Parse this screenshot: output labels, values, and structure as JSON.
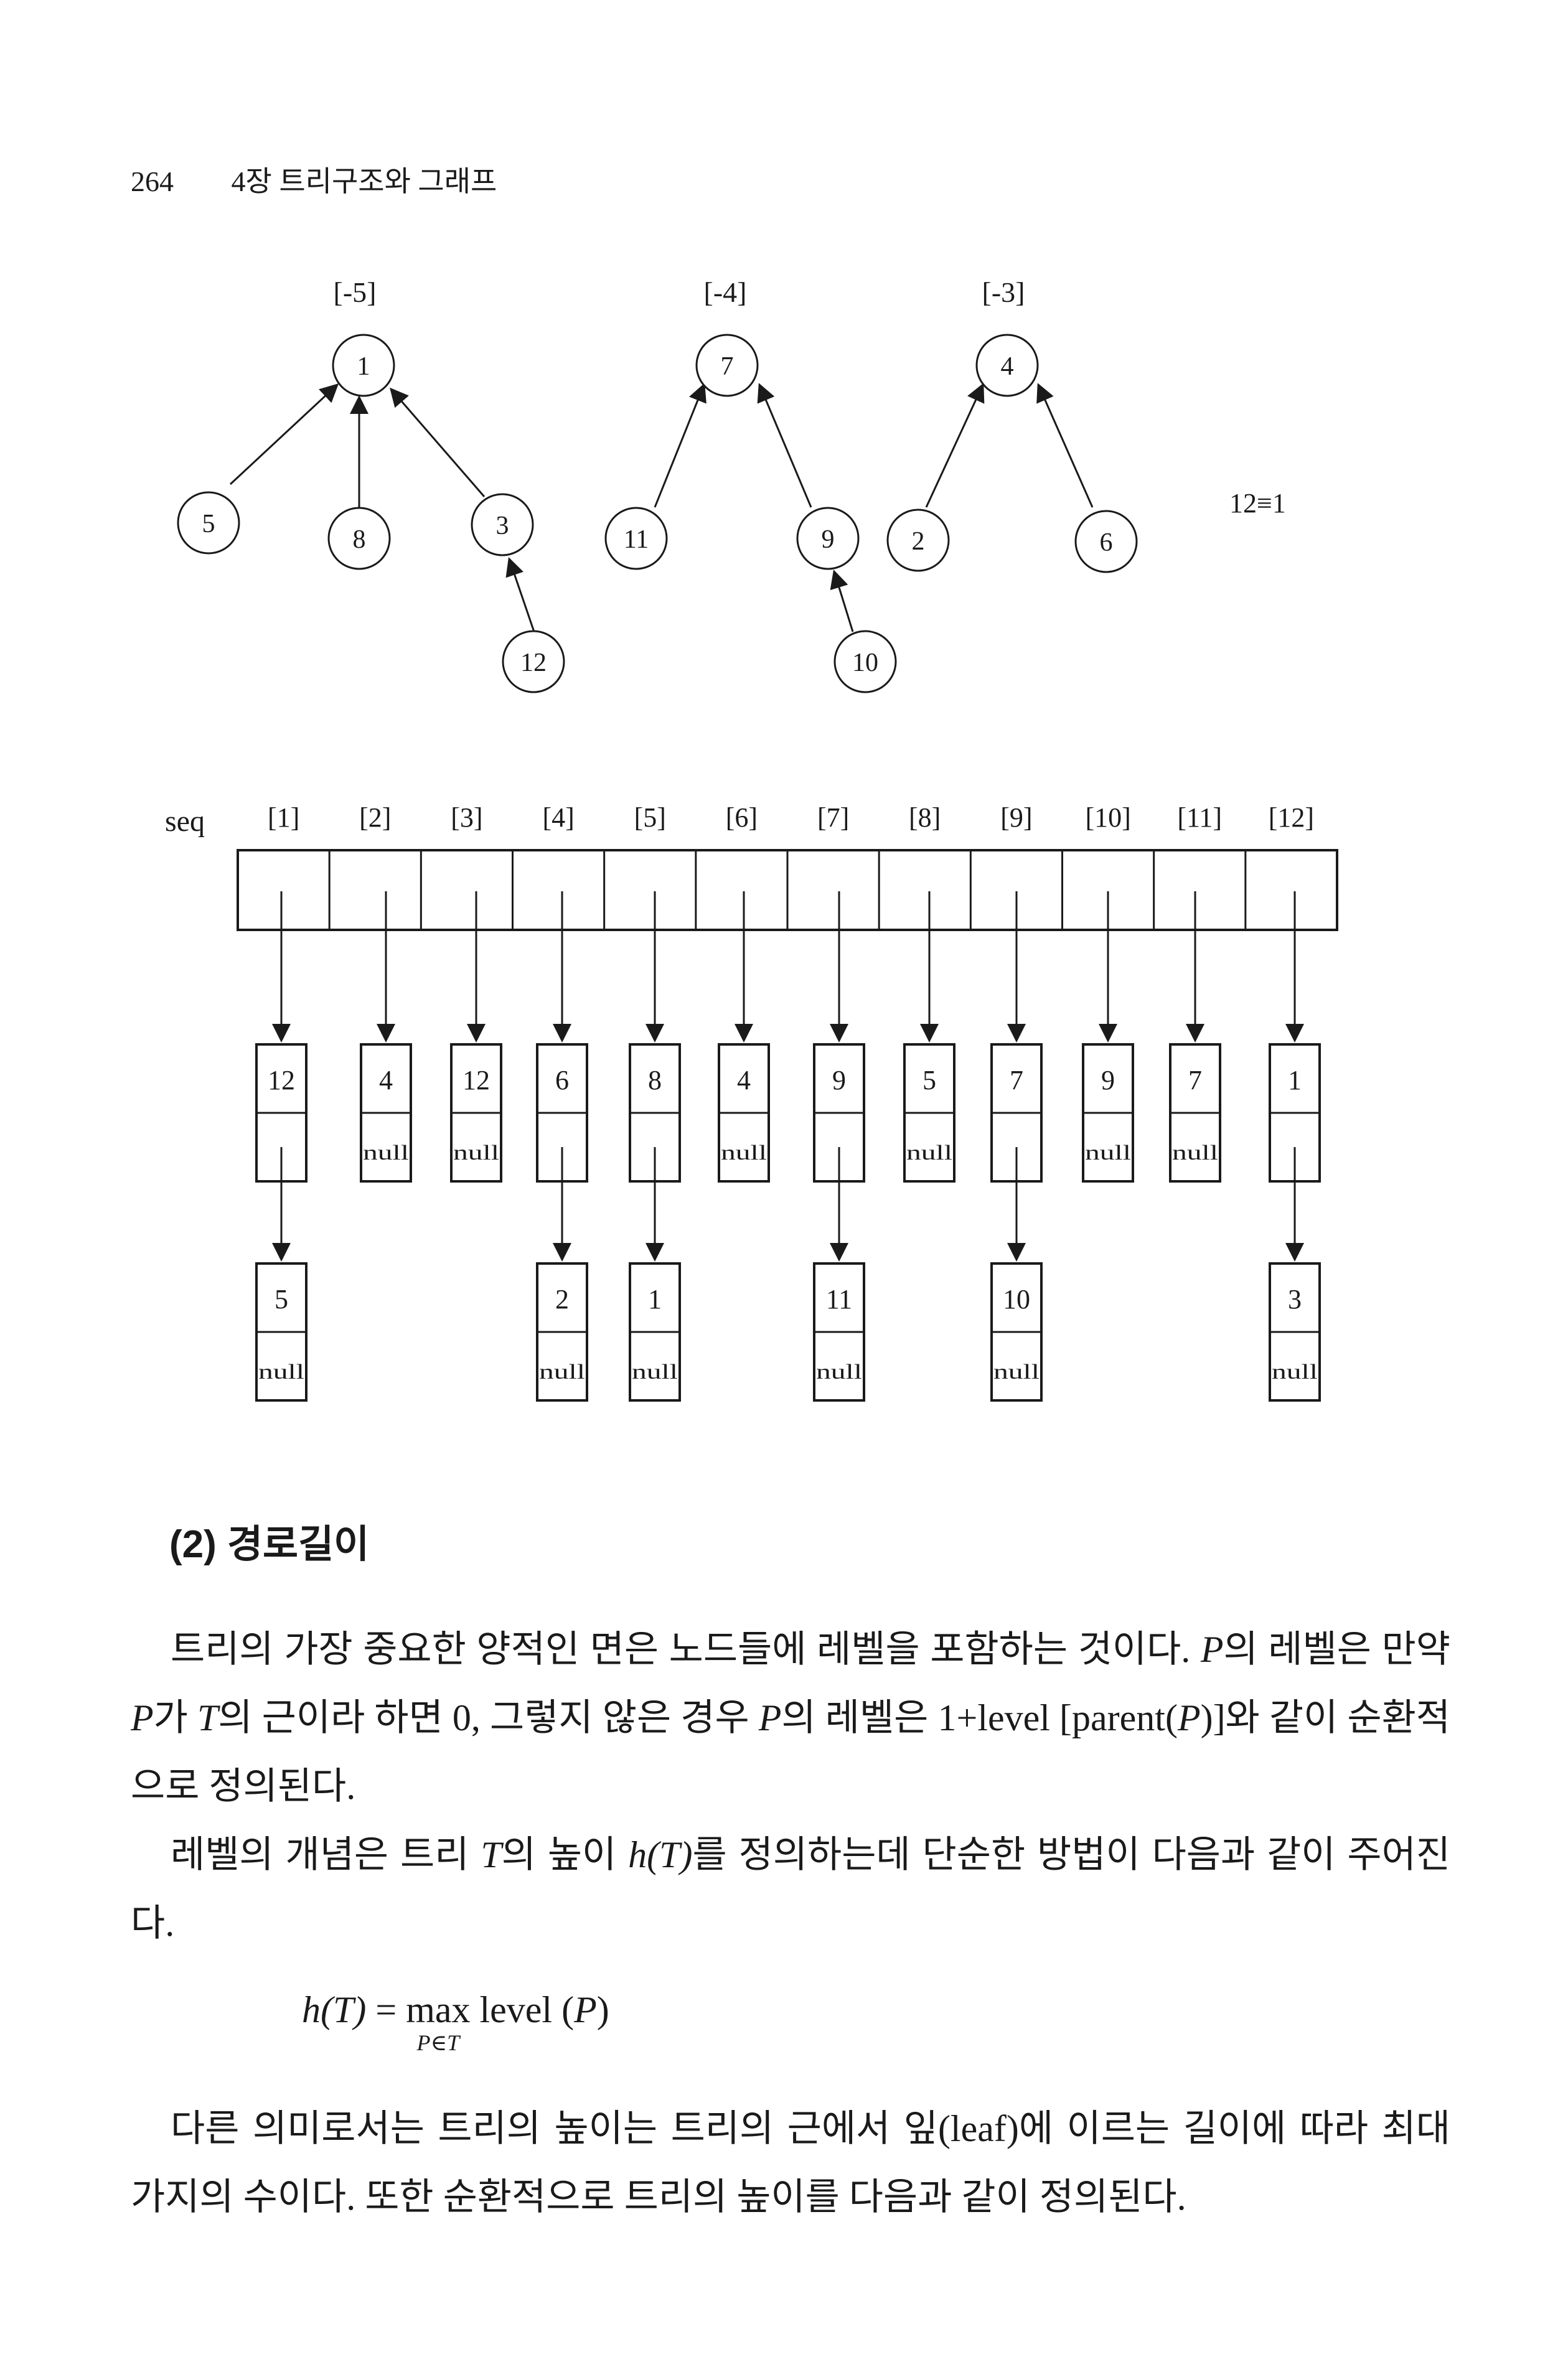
{
  "header": {
    "page_number": "264",
    "chapter": "4장 트리구조와 그래프"
  },
  "figure": {
    "trees": [
      {
        "label": "[-5]",
        "root": "1",
        "children": [
          "5",
          "8",
          "3"
        ],
        "grandchild": "12"
      },
      {
        "label": "[-4]",
        "root": "7",
        "children": [
          "11",
          "9"
        ],
        "grandchild": "10"
      },
      {
        "label": "[-3]",
        "root": "4",
        "children": [
          "2",
          "6"
        ]
      }
    ],
    "equivalence": "12≡1",
    "seq_label": "seq",
    "seq_indices": [
      "[1]",
      "[2]",
      "[3]",
      "[4]",
      "[5]",
      "[6]",
      "[7]",
      "[8]",
      "[9]",
      "[10]",
      "[11]",
      "[12]"
    ],
    "first_nodes": [
      "12",
      "4",
      "12",
      "6",
      "8",
      "4",
      "9",
      "5",
      "7",
      "9",
      "7",
      "1"
    ],
    "first_links": [
      "",
      "null",
      "null",
      "",
      "",
      "null",
      "",
      "null",
      "",
      "null",
      "null",
      ""
    ],
    "second_nodes": [
      "5",
      "",
      "",
      "2",
      "1",
      "",
      "11",
      "",
      "10",
      "",
      "",
      "3"
    ],
    "second_links": [
      "null",
      "",
      "",
      "null",
      "null",
      "",
      "null",
      "",
      "null",
      "",
      "",
      "null"
    ],
    "null_text": "null"
  },
  "section": {
    "title": "(2) 경로길이"
  },
  "paragraphs": {
    "p1_a": "트리의 가장 중요한 양적인 면은 노드들에 레벨을 포함하는 것이다. ",
    "p1_b": "P",
    "p1_c": "의 레벨은 만약 ",
    "p1_d": "P",
    "p1_e": "가 ",
    "p1_f": "T",
    "p1_g": "의 근이라 하면 0, 그렇지 않은 경우 ",
    "p1_h": "P",
    "p1_i": "의 레벨은 1+level [parent(",
    "p1_j": "P",
    "p1_k": ")]와 같이 순환적으로 정의된다.",
    "p2_a": "레벨의 개념은 트리 ",
    "p2_b": "T",
    "p2_c": "의 높이 ",
    "p2_d": "h(T)",
    "p2_e": "를 정의하는데 단순한 방법이 다음과 같이 주어진다.",
    "formula_lhs": "h(T)",
    "formula_eq": " = ",
    "formula_max": "max",
    "formula_under": "P∈T",
    "formula_rhs_a": " level (",
    "formula_rhs_b": "P",
    "formula_rhs_c": ")",
    "p3": "다른 의미로서는 트리의 높이는 트리의 근에서 잎(leaf)에 이르는 길이에 따라 최대 가지의 수이다. 또한 순환적으로 트리의 높이를 다음과 같이 정의된다."
  }
}
